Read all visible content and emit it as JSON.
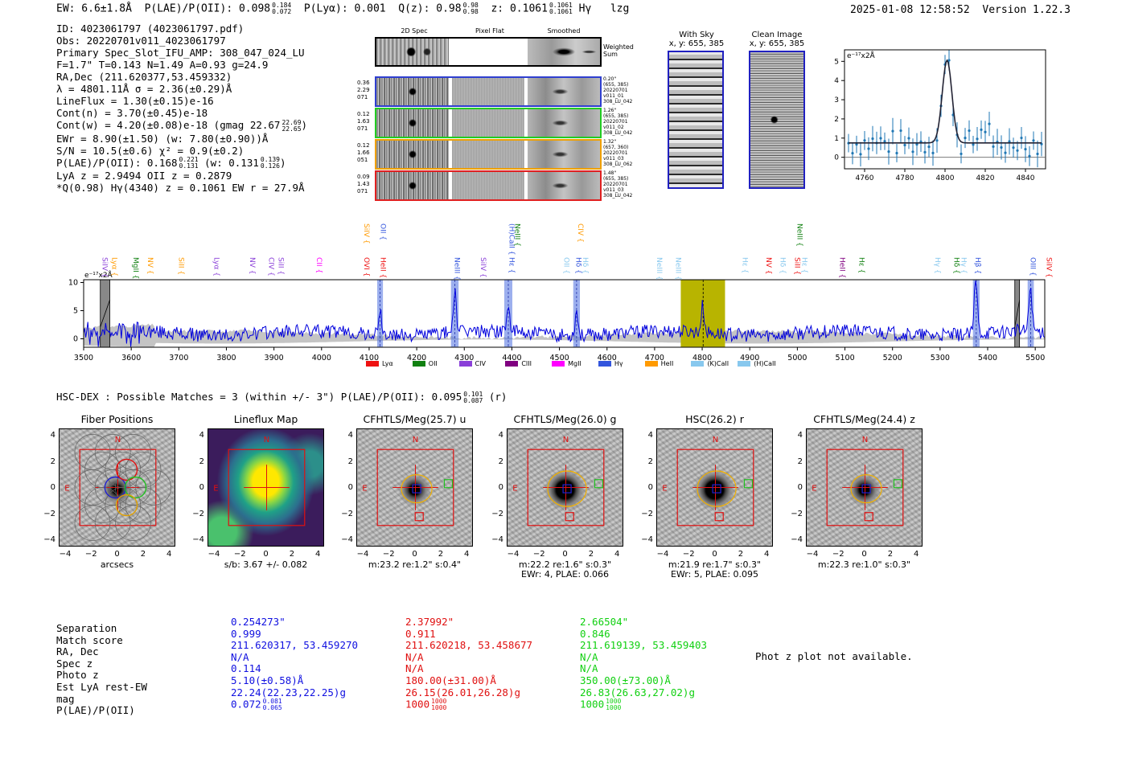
{
  "header": {
    "ew_label": "EW: 6.6±1.8Å",
    "plae_label": "P(LAE)/P(OII): 0.098",
    "plae_hi": "0.184",
    "plae_lo": "0.072",
    "plya_label": "P(Lyα): 0.001",
    "qz_label": "Q(z): 0.98",
    "qz_hi": "0.98",
    "qz_lo": "0.98",
    "z_label": "z: 0.1061",
    "z_hi": "0.1061",
    "z_lo": "0.1061",
    "line_label": "Hγ",
    "tag": "lzg",
    "datetime": "2025-01-08 12:58:52",
    "version": "Version 1.22.3"
  },
  "info": {
    "id": "ID: 4023061797 (4023061797.pdf)",
    "obs": "Obs: 20220701v011_4023061797",
    "slot": "Primary Spec_Slot_IFU_AMP: 308_047_024_LU",
    "fstats": "F=1.7\"  T=0.143  N=1.49  A=0.93  g=24.9",
    "radec": "RA,Dec (211.620377,53.459332)",
    "lambda": "λ = 4801.11Å  σ = 2.36(±0.29)Å",
    "lineflux": "LineFlux = 1.30(±0.15)e-16",
    "contn": "Cont(n) = 3.70(±0.45)e-18",
    "contw": "Cont(w) = 4.20(±0.08)e-18 (gmag 22.67",
    "contw_hi": "22.69",
    "contw_lo": "22.65",
    "contw_end": ")",
    "ewr": "EWr = 8.90(±1.50) (w: 7.80(±0.90))Å",
    "sn": "S/N = 10.5(±0.6)  χ² = 0.9(±0.2)",
    "plae": "P(LAE)/P(OII): 0.168",
    "plae_hi": "0.221",
    "plae_lo": "0.131",
    "plae_w": "(w: 0.131",
    "plae_w_hi": "0.139",
    "plae_w_lo": "0.126",
    "plae_w_end": ")",
    "lyaz": "LyA z = 2.9494  OII z = 0.2879",
    "qline": "*Q(0.98) Hγ(4340) z = 0.1061  EW r = 27.9Å"
  },
  "cutouts": {
    "col_2d": "2D Spec",
    "col_flat": "Pixel Flat",
    "col_smooth": "Smoothed",
    "weighted": "Weighted Sum",
    "rows": [
      {
        "left1": "0.36",
        "left2": "2.29",
        "left3": "071",
        "r1": "0.20\"",
        "r2": "(655, 385)",
        "r3": "20220701",
        "r4": "v011_01",
        "r5": "308_LU_042",
        "color": "#2f3fd0"
      },
      {
        "left1": "0.12",
        "left2": "1.63",
        "left3": "071",
        "r1": "1.26\"",
        "r2": "(655, 385)",
        "r3": "20220701",
        "r4": "v011_02",
        "r5": "308_LU_042",
        "color": "#22cc22"
      },
      {
        "left1": "0.12",
        "left2": "1.66",
        "left3": "051",
        "r1": "1.32\"",
        "r2": "(657, 360)",
        "r3": "20220701",
        "r4": "v011_03",
        "r5": "308_LU_062",
        "color": "#f0a000"
      },
      {
        "left1": "0.09",
        "left2": "1.43",
        "left3": "071",
        "r1": "1.48\"",
        "r2": "(655, 385)",
        "r3": "20220701",
        "r4": "v011_03",
        "r5": "308_LU_042",
        "color": "#e02020"
      }
    ],
    "with_sky_title": "With Sky",
    "with_sky_xy": "x, y: 655, 385",
    "clean_title": "Clean Image",
    "clean_xy": "x, y: 655, 385"
  },
  "zoom_plot": {
    "ylabel": "e⁻¹⁷x2Å",
    "xticks": [
      "4760",
      "4780",
      "4800",
      "4820",
      "4840"
    ],
    "yticks": [
      "0",
      "1",
      "2",
      "3",
      "4",
      "5"
    ]
  },
  "chart_data": {
    "type": "line",
    "title": "",
    "ylabel": "e⁻¹⁷x2Å",
    "xlim": [
      3500,
      5520
    ],
    "ylim": [
      -1.5,
      10.5
    ],
    "xticks": [
      3500,
      3600,
      3700,
      3800,
      3900,
      4000,
      4100,
      4200,
      4300,
      4400,
      4500,
      4600,
      4700,
      4800,
      4900,
      5000,
      5100,
      5200,
      5300,
      5400,
      5500
    ],
    "yticks": [
      0,
      5,
      10
    ],
    "emission_peaks": [
      {
        "x": 4123,
        "y": 4.2
      },
      {
        "x": 4280,
        "y": 7.3
      },
      {
        "x": 4392,
        "y": 4.6
      },
      {
        "x": 4536,
        "y": 4.3
      },
      {
        "x": 4801,
        "y": 4.8
      },
      {
        "x": 5375,
        "y": 9.8
      },
      {
        "x": 5490,
        "y": 8.0
      }
    ],
    "highlight_bands": [
      {
        "x0": 4117,
        "x1": 4129
      },
      {
        "x0": 4272,
        "x1": 4288
      },
      {
        "x0": 4384,
        "x1": 4401
      },
      {
        "x0": 4529,
        "x1": 4543
      },
      {
        "x0": 5369,
        "x1": 5383
      },
      {
        "x0": 5484,
        "x1": 5497
      }
    ],
    "primary_band": {
      "x0": 4755,
      "x1": 4848
    },
    "masked_bands": [
      {
        "x0": 3535,
        "x1": 3555
      },
      {
        "x0": 5457,
        "x1": 5467
      }
    ],
    "legend": [
      {
        "label": "Lyα",
        "color": "#ee1111"
      },
      {
        "label": "OII",
        "color": "#108010"
      },
      {
        "label": "CIV",
        "color": "#8a3fd8"
      },
      {
        "label": "CIII",
        "color": "#800080"
      },
      {
        "label": "MgII",
        "color": "#ff00ff"
      },
      {
        "label": "Hγ",
        "color": "#3355dd"
      },
      {
        "label": "HeII",
        "color": "#ff9a00"
      },
      {
        "label": "(K)CaII",
        "color": "#88c8ee"
      },
      {
        "label": "(H)CaII",
        "color": "#88c8ee"
      }
    ],
    "line_labels_low": [
      {
        "x": 3540,
        "label": "SiIV",
        "color": "#8a3fd8"
      },
      {
        "x": 3560,
        "label": "Lyα",
        "color": "#ff9a00"
      },
      {
        "x": 3605,
        "label": "MgII",
        "color": "#108010"
      },
      {
        "x": 3635,
        "label": "NV",
        "color": "#ff9a00"
      },
      {
        "x": 3700,
        "label": "SiII",
        "color": "#ff9a00"
      },
      {
        "x": 3775,
        "label": "Lyα",
        "color": "#8a3fd8"
      },
      {
        "x": 3850,
        "label": "NV",
        "color": "#8a3fd8"
      },
      {
        "x": 3890,
        "label": "CIV",
        "color": "#8a3fd8"
      },
      {
        "x": 3910,
        "label": "SiII",
        "color": "#8a3fd8"
      },
      {
        "x": 3990,
        "label": "CII",
        "color": "#ff00ff"
      },
      {
        "x": 4090,
        "label": "OVI",
        "color": "#ee1111"
      },
      {
        "x": 4125,
        "label": "HeII",
        "color": "#ee1111"
      },
      {
        "x": 4280,
        "label": "NeIII",
        "color": "#3355dd"
      },
      {
        "x": 4335,
        "label": "SiIV",
        "color": "#8a3fd8"
      },
      {
        "x": 4395,
        "label": "Hε",
        "color": "#3355dd"
      },
      {
        "x": 4510,
        "label": "OII",
        "color": "#88c8ee"
      },
      {
        "x": 4535,
        "label": "Hδ",
        "color": "#3355dd"
      },
      {
        "x": 4550,
        "label": "Hδ",
        "color": "#88c8ee"
      },
      {
        "x": 4705,
        "label": "NeIII",
        "color": "#88c8ee"
      },
      {
        "x": 4745,
        "label": "NeIII",
        "color": "#88c8ee"
      },
      {
        "x": 4885,
        "label": "Hε",
        "color": "#88c8ee"
      },
      {
        "x": 4935,
        "label": "NV",
        "color": "#ee1111"
      },
      {
        "x": 4965,
        "label": "Hδ",
        "color": "#88c8ee"
      },
      {
        "x": 4995,
        "label": "SiII",
        "color": "#ee1111"
      },
      {
        "x": 5010,
        "label": "Hε",
        "color": "#88c8ee"
      },
      {
        "x": 5090,
        "label": "HeII",
        "color": "#800080"
      },
      {
        "x": 5130,
        "label": "Hε",
        "color": "#108010"
      },
      {
        "x": 5290,
        "label": "Hγ",
        "color": "#88c8ee"
      },
      {
        "x": 5330,
        "label": "Hδ",
        "color": "#108010"
      },
      {
        "x": 5345,
        "label": "Hγ",
        "color": "#88c8ee"
      },
      {
        "x": 5375,
        "label": "Hβ",
        "color": "#3355dd"
      },
      {
        "x": 5490,
        "label": "OIII",
        "color": "#3355dd"
      },
      {
        "x": 5525,
        "label": "SiIV",
        "color": "#ee1111"
      }
    ],
    "line_labels_high": [
      {
        "x": 4090,
        "label": "SiIV",
        "color": "#ff9a00"
      },
      {
        "x": 4125,
        "label": "OII",
        "color": "#3355dd"
      },
      {
        "x": 4395,
        "label": "(H)CaII",
        "color": "#3355dd"
      },
      {
        "x": 4407,
        "label": "NeIII",
        "color": "#108010"
      },
      {
        "x": 4540,
        "label": "CIV",
        "color": "#ff9a00"
      },
      {
        "x": 5000,
        "label": "NeIII",
        "color": "#108010"
      }
    ]
  },
  "hsc": {
    "title": "HSC-DEX : Possible Matches = 3 (within +/- 3\")  P(LAE)/P(OII): 0.095",
    "plae_hi": "0.101",
    "plae_lo": "0.087",
    "suffix": "(r)",
    "panels": [
      {
        "title": "Fiber Positions",
        "cap1": "arcsecs",
        "cap2": ""
      },
      {
        "title": "Lineflux Map",
        "cap1": "s/b: 3.67 +/- 0.082",
        "cap2": ""
      },
      {
        "title": "CFHTLS/Meg(25.7) u",
        "cap1": "m:23.2  re:1.2\"  s:0.4\"",
        "cap2": ""
      },
      {
        "title": "CFHTLS/Meg(26.0) g",
        "cap1": "m:22.2  re:1.6\"  s:0.3\"",
        "cap2": "EWr: 4, PLAE: 0.066"
      },
      {
        "title": "HSC(26.2) r",
        "cap1": "m:21.9  re:1.7\"  s:0.3\"",
        "cap2": "EWr: 5, PLAE: 0.095"
      },
      {
        "title": "CFHTLS/Meg(24.4) z",
        "cap1": "m:22.3  re:1.0\"  s:0.3\"",
        "cap2": ""
      }
    ],
    "axis_ticks": [
      "−4",
      "−2",
      "0",
      "2",
      "4"
    ],
    "north": "N",
    "east": "E"
  },
  "table": {
    "labels": [
      "Separation",
      "Match score",
      "RA, Dec",
      "Spec z",
      "Photo z",
      "Est LyA rest-EW",
      "mag",
      "P(LAE)/P(OII)"
    ],
    "cols": [
      {
        "color": "#1010e0",
        "values": [
          "0.254273\"",
          "0.999",
          "211.620317, 53.459270",
          "N/A",
          "0.114",
          "5.10(±0.58)Å",
          "22.24(22.23,22.25)g"
        ],
        "plae": "0.072",
        "plae_hi": "0.081",
        "plae_lo": "0.065"
      },
      {
        "color": "#e01010",
        "values": [
          "2.37992\"",
          "0.911",
          "211.620218, 53.458677",
          "N/A",
          "N/A",
          "180.00(±31.00)Å",
          "26.15(26.01,26.28)g"
        ],
        "plae": "1000",
        "plae_hi": "1000",
        "plae_lo": "1000"
      },
      {
        "color": "#10d010",
        "values": [
          "2.66504\"",
          "0.846",
          "211.619139, 53.459403",
          "N/A",
          "N/A",
          "350.00(±73.00)Å",
          "26.83(26.63,27.02)g"
        ],
        "plae": "1000",
        "plae_hi": "1000",
        "plae_lo": "1000"
      }
    ],
    "photz_note": "Phot z plot not available."
  }
}
